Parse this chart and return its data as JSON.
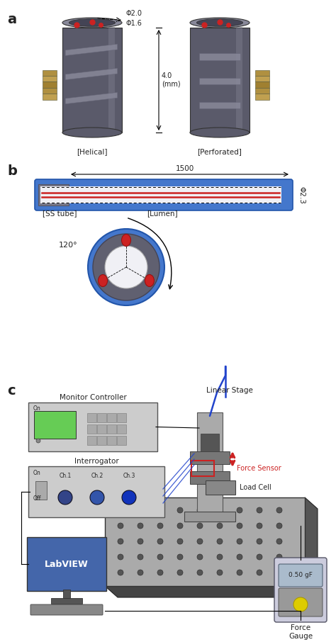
{
  "panel_a": {
    "label": "a",
    "helical_label": "[Helical]",
    "perforated_label": "[Perforated]",
    "dim_outer": "Φ2.0",
    "dim_inner": "Φ1.6",
    "cylinder_color": "#5a5a6a",
    "cylinder_highlight": "#7a7a8a",
    "red_dot_color": "#cc2222"
  },
  "panel_b": {
    "label": "b",
    "dim_length": "1500",
    "dim_dia": "Φ2.3",
    "tube_color_blue": "#4477cc",
    "fiber_color": "#cc2222",
    "ss_tube_label": "[SS tube]",
    "lumen_label": "[Lumen]",
    "angle_label": "120°",
    "red_dot_color": "#cc2222",
    "ring_gray": "#606070",
    "ring_blue": "#4477cc"
  },
  "panel_c": {
    "label": "c",
    "linear_stage_label": "Linear Stage",
    "monitor_controller_label": "Monitor Controller",
    "interrogator_label": "Interrogator",
    "labview_label": "LabVIEW",
    "load_cell_label": "Load Cell",
    "force_sensor_label": "Force Sensor",
    "force_gauge_label": "Force\nGauge",
    "force_gauge_value": "0.50 gF",
    "ch1": "Ch.1",
    "ch2": "Ch.2",
    "ch3": "Ch.3",
    "on_label": "On",
    "off_label": "Off",
    "blue_wire": "#2244cc",
    "red_arrow": "#cc2222"
  },
  "bg_color": "#ffffff",
  "text_color": "#222222",
  "fig_width": 4.74,
  "fig_height": 9.06
}
